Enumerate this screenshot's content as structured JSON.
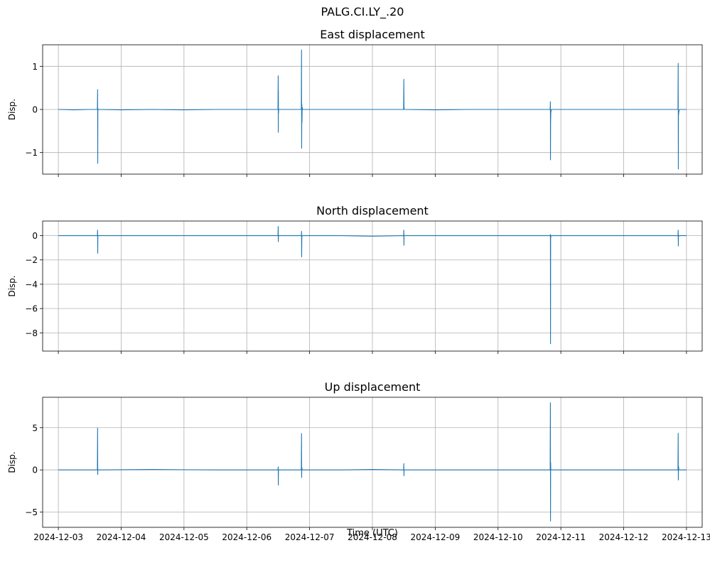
{
  "figure": {
    "suptitle": "PALG.CI.LY_.20",
    "xlabel": "Time (UTC)",
    "line_color": "#1f77b4",
    "grid_color": "#b0b0b0"
  },
  "chart_data": [
    {
      "type": "line",
      "title": "East displacement",
      "ylabel": "Disp.",
      "xlim": [
        "2024-12-02T18:00:00",
        "2024-12-13T06:00:00"
      ],
      "ylim": [
        -1.5,
        1.5
      ],
      "yticks": [
        -1,
        0,
        1
      ],
      "ytick_labels": [
        "−1",
        "0",
        "1"
      ],
      "xticks": [
        "2024-12-03",
        "2024-12-04",
        "2024-12-05",
        "2024-12-06",
        "2024-12-07",
        "2024-12-08",
        "2024-12-09",
        "2024-12-10",
        "2024-12-11",
        "2024-12-12",
        "2024-12-13"
      ],
      "show_xtick_labels": false,
      "grid": true,
      "series": [
        {
          "points": [
            [
              "2024-12-03T00:00:00",
              0.0
            ],
            [
              "2024-12-03T06:00:00",
              -0.01
            ],
            [
              "2024-12-03T12:00:00",
              0.0
            ],
            [
              "2024-12-03T14:55:00",
              0.0
            ],
            [
              "2024-12-03T15:00:00",
              0.46
            ],
            [
              "2024-12-03T15:03:00",
              -1.25
            ],
            [
              "2024-12-03T15:06:00",
              0.02
            ],
            [
              "2024-12-03T15:10:00",
              0.0
            ],
            [
              "2024-12-04T00:00:00",
              -0.01
            ],
            [
              "2024-12-04T12:00:00",
              0.0
            ],
            [
              "2024-12-05T00:00:00",
              -0.01
            ],
            [
              "2024-12-05T12:00:00",
              0.0
            ],
            [
              "2024-12-06T00:00:00",
              0.0
            ],
            [
              "2024-12-06T11:55:00",
              0.0
            ],
            [
              "2024-12-06T12:00:00",
              0.78
            ],
            [
              "2024-12-06T12:02:00",
              -0.53
            ],
            [
              "2024-12-06T12:04:00",
              0.45
            ],
            [
              "2024-12-06T12:06:00",
              -0.1
            ],
            [
              "2024-12-06T12:10:00",
              0.0
            ],
            [
              "2024-12-06T20:50:00",
              0.0
            ],
            [
              "2024-12-06T20:55:00",
              1.38
            ],
            [
              "2024-12-06T20:58:00",
              -0.9
            ],
            [
              "2024-12-06T21:02:00",
              0.12
            ],
            [
              "2024-12-06T21:05:00",
              -0.3
            ],
            [
              "2024-12-06T21:10:00",
              0.05
            ],
            [
              "2024-12-06T21:20:00",
              0.0
            ],
            [
              "2024-12-07T12:00:00",
              0.0
            ],
            [
              "2024-12-08T00:00:00",
              0.0
            ],
            [
              "2024-12-08T11:55:00",
              0.0
            ],
            [
              "2024-12-08T12:00:00",
              0.7
            ],
            [
              "2024-12-08T12:04:00",
              0.05
            ],
            [
              "2024-12-08T12:10:00",
              0.0
            ],
            [
              "2024-12-09T00:00:00",
              -0.01
            ],
            [
              "2024-12-09T12:00:00",
              0.0
            ],
            [
              "2024-12-10T00:00:00",
              0.0
            ],
            [
              "2024-12-10T12:00:00",
              0.0
            ],
            [
              "2024-12-10T19:55:00",
              0.0
            ],
            [
              "2024-12-10T20:00:00",
              0.18
            ],
            [
              "2024-12-10T20:02:00",
              -1.17
            ],
            [
              "2024-12-10T20:05:00",
              -0.3
            ],
            [
              "2024-12-10T20:10:00",
              -0.08
            ],
            [
              "2024-12-10T20:20:00",
              0.0
            ],
            [
              "2024-12-11T12:00:00",
              0.0
            ],
            [
              "2024-12-12T00:00:00",
              0.0
            ],
            [
              "2024-12-12T12:00:00",
              0.0
            ],
            [
              "2024-12-12T20:45:00",
              0.0
            ],
            [
              "2024-12-12T20:50:00",
              1.07
            ],
            [
              "2024-12-12T20:53:00",
              -1.38
            ],
            [
              "2024-12-12T20:56:00",
              -0.15
            ],
            [
              "2024-12-12T21:05:00",
              -0.05
            ],
            [
              "2024-12-12T21:20:00",
              0.0
            ],
            [
              "2024-12-13T00:00:00",
              0.0
            ]
          ]
        }
      ]
    },
    {
      "type": "line",
      "title": "North displacement",
      "ylabel": "Disp.",
      "xlim": [
        "2024-12-02T18:00:00",
        "2024-12-13T06:00:00"
      ],
      "ylim": [
        -9.5,
        1.2
      ],
      "yticks": [
        -8,
        -6,
        -4,
        -2,
        0
      ],
      "ytick_labels": [
        "−8",
        "−6",
        "−4",
        "−2",
        "0"
      ],
      "xticks": [
        "2024-12-03",
        "2024-12-04",
        "2024-12-05",
        "2024-12-06",
        "2024-12-07",
        "2024-12-08",
        "2024-12-09",
        "2024-12-10",
        "2024-12-11",
        "2024-12-12",
        "2024-12-13"
      ],
      "show_xtick_labels": false,
      "grid": true,
      "series": [
        {
          "points": [
            [
              "2024-12-03T00:00:00",
              0.0
            ],
            [
              "2024-12-03T12:00:00",
              0.0
            ],
            [
              "2024-12-03T14:55:00",
              0.0
            ],
            [
              "2024-12-03T15:00:00",
              0.45
            ],
            [
              "2024-12-03T15:03:00",
              -1.45
            ],
            [
              "2024-12-03T15:06:00",
              0.0
            ],
            [
              "2024-12-04T12:00:00",
              0.0
            ],
            [
              "2024-12-05T12:00:00",
              0.0
            ],
            [
              "2024-12-06T11:55:00",
              0.0
            ],
            [
              "2024-12-06T12:00:00",
              0.75
            ],
            [
              "2024-12-06T12:03:00",
              -0.5
            ],
            [
              "2024-12-06T12:06:00",
              0.0
            ],
            [
              "2024-12-06T20:50:00",
              0.0
            ],
            [
              "2024-12-06T20:55:00",
              0.35
            ],
            [
              "2024-12-06T20:58:00",
              -1.75
            ],
            [
              "2024-12-06T21:02:00",
              -0.1
            ],
            [
              "2024-12-06T21:10:00",
              0.0
            ],
            [
              "2024-12-07T12:00:00",
              0.0
            ],
            [
              "2024-12-08T00:00:00",
              -0.05
            ],
            [
              "2024-12-08T11:55:00",
              0.0
            ],
            [
              "2024-12-08T12:00:00",
              0.45
            ],
            [
              "2024-12-08T12:03:00",
              -0.8
            ],
            [
              "2024-12-08T12:06:00",
              0.0
            ],
            [
              "2024-12-09T12:00:00",
              0.0
            ],
            [
              "2024-12-10T12:00:00",
              0.0
            ],
            [
              "2024-12-10T19:55:00",
              0.0
            ],
            [
              "2024-12-10T20:00:00",
              0.1
            ],
            [
              "2024-12-10T20:03:00",
              -8.9
            ],
            [
              "2024-12-10T20:06:00",
              -0.2
            ],
            [
              "2024-12-10T20:15:00",
              0.0
            ],
            [
              "2024-12-11T12:00:00",
              0.0
            ],
            [
              "2024-12-12T12:00:00",
              0.0
            ],
            [
              "2024-12-12T20:45:00",
              0.0
            ],
            [
              "2024-12-12T20:50:00",
              0.45
            ],
            [
              "2024-12-12T20:53:00",
              -0.85
            ],
            [
              "2024-12-12T20:56:00",
              -0.1
            ],
            [
              "2024-12-12T21:05:00",
              0.0
            ],
            [
              "2024-12-13T00:00:00",
              0.0
            ]
          ]
        }
      ]
    },
    {
      "type": "line",
      "title": "Up displacement",
      "ylabel": "Disp.",
      "xlim": [
        "2024-12-02T18:00:00",
        "2024-12-13T06:00:00"
      ],
      "ylim": [
        -6.8,
        8.6
      ],
      "yticks": [
        -5,
        0,
        5
      ],
      "ytick_labels": [
        "−5",
        "0",
        "5"
      ],
      "xticks": [
        "2024-12-03",
        "2024-12-04",
        "2024-12-05",
        "2024-12-06",
        "2024-12-07",
        "2024-12-08",
        "2024-12-09",
        "2024-12-10",
        "2024-12-11",
        "2024-12-12",
        "2024-12-13"
      ],
      "xtick_labels": [
        "2024-12-03",
        "2024-12-04",
        "2024-12-05",
        "2024-12-06",
        "2024-12-07",
        "2024-12-08",
        "2024-12-09",
        "2024-12-10",
        "2024-12-11",
        "2024-12-12",
        "2024-12-13"
      ],
      "show_xtick_labels": true,
      "grid": true,
      "series": [
        {
          "points": [
            [
              "2024-12-03T00:00:00",
              0.0
            ],
            [
              "2024-12-03T12:00:00",
              0.0
            ],
            [
              "2024-12-03T14:55:00",
              0.0
            ],
            [
              "2024-12-03T15:00:00",
              4.95
            ],
            [
              "2024-12-03T15:03:00",
              -0.55
            ],
            [
              "2024-12-03T15:06:00",
              0.0
            ],
            [
              "2024-12-04T12:00:00",
              0.05
            ],
            [
              "2024-12-05T12:00:00",
              0.0
            ],
            [
              "2024-12-06T11:55:00",
              0.0
            ],
            [
              "2024-12-06T12:00:00",
              0.35
            ],
            [
              "2024-12-06T12:03:00",
              -1.8
            ],
            [
              "2024-12-06T12:06:00",
              0.0
            ],
            [
              "2024-12-06T20:50:00",
              0.0
            ],
            [
              "2024-12-06T20:55:00",
              4.3
            ],
            [
              "2024-12-06T20:58:00",
              -0.9
            ],
            [
              "2024-12-06T21:02:00",
              0.3
            ],
            [
              "2024-12-06T21:10:00",
              0.0
            ],
            [
              "2024-12-07T12:00:00",
              0.0
            ],
            [
              "2024-12-08T00:00:00",
              0.05
            ],
            [
              "2024-12-08T11:55:00",
              0.0
            ],
            [
              "2024-12-08T12:00:00",
              0.75
            ],
            [
              "2024-12-08T12:03:00",
              -0.7
            ],
            [
              "2024-12-08T12:06:00",
              0.0
            ],
            [
              "2024-12-09T12:00:00",
              0.0
            ],
            [
              "2024-12-10T12:00:00",
              0.0
            ],
            [
              "2024-12-10T19:55:00",
              0.0
            ],
            [
              "2024-12-10T20:00:00",
              7.95
            ],
            [
              "2024-12-10T20:03:00",
              -6.05
            ],
            [
              "2024-12-10T20:06:00",
              0.9
            ],
            [
              "2024-12-10T20:10:00",
              0.0
            ],
            [
              "2024-12-11T12:00:00",
              0.0
            ],
            [
              "2024-12-12T12:00:00",
              0.0
            ],
            [
              "2024-12-12T20:45:00",
              0.0
            ],
            [
              "2024-12-12T20:50:00",
              4.35
            ],
            [
              "2024-12-12T20:53:00",
              -1.2
            ],
            [
              "2024-12-12T20:56:00",
              0.45
            ],
            [
              "2024-12-12T21:05:00",
              0.0
            ],
            [
              "2024-12-13T00:00:00",
              0.0
            ]
          ]
        }
      ]
    }
  ]
}
